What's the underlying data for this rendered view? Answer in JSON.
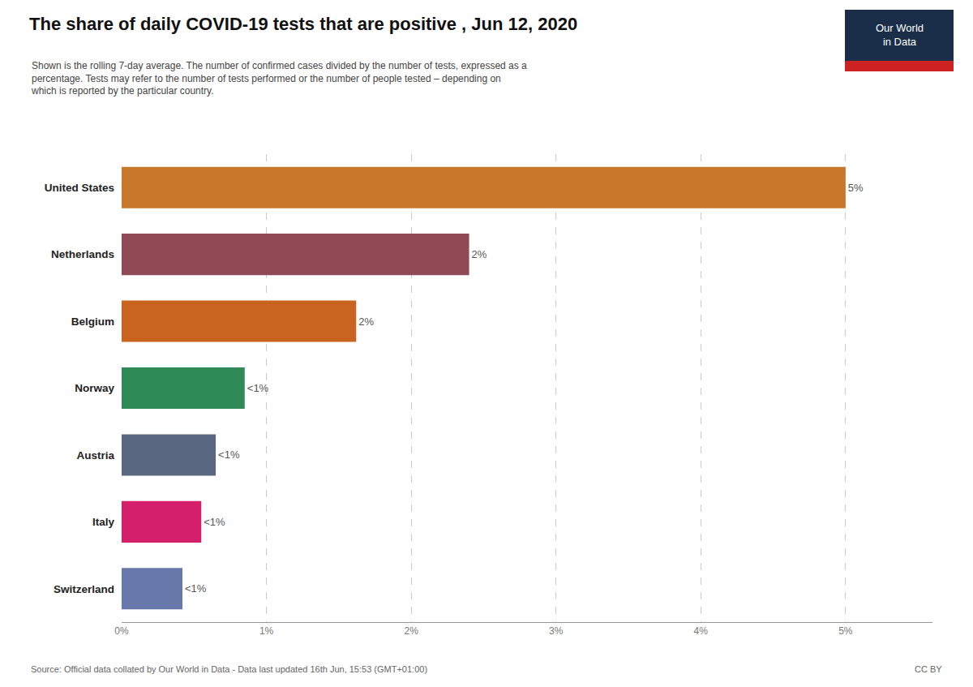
{
  "chart_data": {
    "type": "bar",
    "orientation": "horizontal",
    "title": "The share of daily COVID-19 tests that are positive , Jun 12, 2020",
    "subtitle": [
      "Shown is the rolling 7-day average. The number of confirmed cases divided by the number of tests, expressed as a",
      "percentage. Tests may refer to the number of tests performed or the number of people tested – depending on",
      "which is reported by the particular country."
    ],
    "categories": [
      "United States",
      "Netherlands",
      "Belgium",
      "Norway",
      "Austria",
      "Italy",
      "Switzerland"
    ],
    "values": [
      5.0,
      2.4,
      1.62,
      0.85,
      0.65,
      0.55,
      0.42
    ],
    "value_labels": [
      "5%",
      "2%",
      "2%",
      "<1%",
      "<1%",
      "<1%",
      "<1%"
    ],
    "data_labels": true,
    "colors": [
      "#c8782a",
      "#904a56",
      "#c86420",
      "#2e8b57",
      "#596880",
      "#d4206a",
      "#6878aa"
    ],
    "xlim": [
      0,
      5.6
    ],
    "xticks": [
      {
        "value": 0,
        "label": "0%"
      },
      {
        "value": 1,
        "label": "1%"
      },
      {
        "value": 2,
        "label": "2%"
      },
      {
        "value": 3,
        "label": "3%"
      },
      {
        "value": 4,
        "label": "4%"
      },
      {
        "value": 5,
        "label": "5%"
      }
    ],
    "grid": true,
    "annotations": [
      {
        "text": "Source: Official data collated by Our World in Data - Data last updated 16th Jun, 15:53 (GMT+01:00)"
      },
      {
        "text": "CC BY"
      },
      {
        "text": [
          "Our World",
          "in Data"
        ],
        "colors": [
          "#1a2e4a",
          "#cc2222"
        ]
      }
    ]
  }
}
